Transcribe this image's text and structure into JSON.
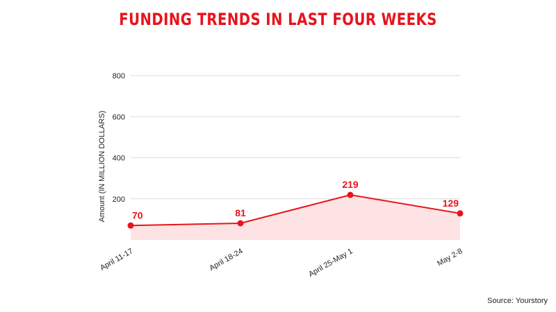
{
  "title": "FUNDING TRENDS IN LAST FOUR WEEKS",
  "source": "Source: Yourstory",
  "colors": {
    "accent": "#e8131c",
    "area_fill": "#fde3e3",
    "grid": "#d9d9d9",
    "text": "#222222"
  },
  "chart_data": {
    "type": "area",
    "title": "FUNDING TRENDS IN LAST FOUR WEEKS",
    "xlabel": "",
    "ylabel": "Amount (IN MILLION DOLLARS)",
    "categories": [
      "April 11-17",
      "April 18-24",
      "April 25-May 1",
      "May 2-8"
    ],
    "values": [
      70,
      81,
      219,
      129
    ],
    "data_labels": [
      "70",
      "81",
      "219",
      "129"
    ],
    "yticks": [
      200,
      400,
      600,
      800
    ],
    "ylim": [
      0,
      800
    ],
    "grid": true,
    "legend": "none"
  }
}
